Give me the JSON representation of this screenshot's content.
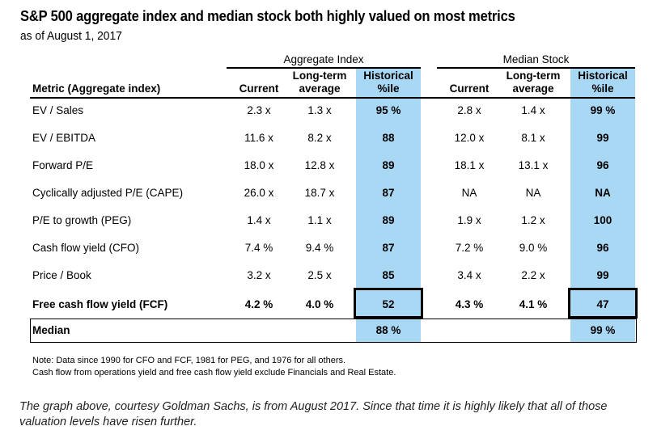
{
  "title": "S&P 500 aggregate index and median stock both highly valued on most metrics",
  "subtitle": "as of August 1, 2017",
  "groups": {
    "aggregate": "Aggregate Index",
    "median": "Median Stock"
  },
  "headers": {
    "metric": "Metric (Aggregate index)",
    "current": "Current",
    "lt_line1": "Long-term",
    "lt_line2": "average",
    "hist_line1": "Historical",
    "hist_line2": "%ile"
  },
  "rows": [
    {
      "metric": "EV / Sales",
      "agg_cur": "2.3 x",
      "agg_avg": "1.3 x",
      "agg_pct": "95 %",
      "med_cur": "2.8 x",
      "med_avg": "1.4 x",
      "med_pct": "99 %"
    },
    {
      "metric": "EV / EBITDA",
      "agg_cur": "11.6 x",
      "agg_avg": "8.2 x",
      "agg_pct": "88",
      "med_cur": "12.0 x",
      "med_avg": "8.1 x",
      "med_pct": "99"
    },
    {
      "metric": "Forward P/E",
      "agg_cur": "18.0 x",
      "agg_avg": "12.8 x",
      "agg_pct": "89",
      "med_cur": "18.1 x",
      "med_avg": "13.1 x",
      "med_pct": "96"
    },
    {
      "metric": "Cyclically adjusted P/E (CAPE)",
      "agg_cur": "26.0 x",
      "agg_avg": "18.7 x",
      "agg_pct": "87",
      "med_cur": "NA",
      "med_avg": "NA",
      "med_pct": "NA"
    },
    {
      "metric": "P/E to growth (PEG)",
      "agg_cur": "1.4 x",
      "agg_avg": "1.1 x",
      "agg_pct": "89",
      "med_cur": "1.9 x",
      "med_avg": "1.2 x",
      "med_pct": "100"
    },
    {
      "metric": "Cash flow yield (CFO)",
      "agg_cur": "7.4 %",
      "agg_avg": "9.4 %",
      "agg_pct": "87",
      "med_cur": "7.2 %",
      "med_avg": "9.0 %",
      "med_pct": "96"
    },
    {
      "metric": "Price / Book",
      "agg_cur": "3.2 x",
      "agg_avg": "2.5 x",
      "agg_pct": "85",
      "med_cur": "3.4 x",
      "med_avg": "2.2 x",
      "med_pct": "99"
    },
    {
      "metric": "Free cash flow yield (FCF)",
      "agg_cur": "4.2 %",
      "agg_avg": "4.0 %",
      "agg_pct": "52",
      "med_cur": "4.3 %",
      "med_avg": "4.1 %",
      "med_pct": "47"
    }
  ],
  "median_row": {
    "label": "Median",
    "agg_pct": "88 %",
    "med_pct": "99 %"
  },
  "notes": {
    "line1": "Note: Data since 1990 for CFO and FCF, 1981 for PEG, and 1976 for all others.",
    "line2": "Cash flow from operations yield and free cash flow yield exclude Financials and Real Estate."
  },
  "caption": "The graph above, courtesy Goldman Sachs, is from August 2017. Since that time it is highly likely that all of those valuation levels have risen further.",
  "colors": {
    "highlight": "#a9d8f5"
  }
}
